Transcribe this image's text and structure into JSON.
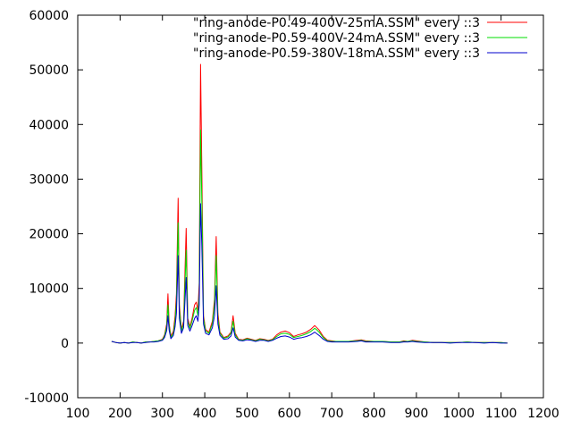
{
  "chart_data": {
    "type": "line",
    "title": "",
    "xlabel": "",
    "ylabel": "",
    "xlim": [
      100,
      1200
    ],
    "ylim": [
      -10000,
      60000
    ],
    "xticks": [
      100,
      200,
      300,
      400,
      500,
      600,
      700,
      800,
      900,
      1000,
      1100,
      1200
    ],
    "yticks": [
      -10000,
      0,
      10000,
      20000,
      30000,
      40000,
      50000,
      60000
    ],
    "grid": false,
    "legend_position": "top-right",
    "series": [
      {
        "name": "\"ring-anode-P0.49-400V-25mA.SSM\" every ::3",
        "color": "#ff0000",
        "points": [
          [
            180,
            300
          ],
          [
            190,
            100
          ],
          [
            200,
            0
          ],
          [
            210,
            100
          ],
          [
            220,
            0
          ],
          [
            230,
            200
          ],
          [
            240,
            100
          ],
          [
            250,
            0
          ],
          [
            260,
            200
          ],
          [
            270,
            200
          ],
          [
            280,
            300
          ],
          [
            290,
            400
          ],
          [
            300,
            700
          ],
          [
            305,
            1500
          ],
          [
            310,
            3500
          ],
          [
            313,
            9000
          ],
          [
            316,
            3500
          ],
          [
            320,
            1200
          ],
          [
            326,
            2200
          ],
          [
            330,
            5000
          ],
          [
            333,
            9000
          ],
          [
            337,
            26500
          ],
          [
            340,
            7000
          ],
          [
            345,
            2500
          ],
          [
            350,
            4000
          ],
          [
            356,
            21000
          ],
          [
            360,
            4500
          ],
          [
            365,
            3000
          ],
          [
            370,
            4500
          ],
          [
            376,
            7000
          ],
          [
            380,
            7500
          ],
          [
            384,
            6000
          ],
          [
            387,
            11000
          ],
          [
            390,
            51000
          ],
          [
            393,
            32000
          ],
          [
            397,
            5000
          ],
          [
            402,
            2500
          ],
          [
            410,
            2000
          ],
          [
            418,
            4000
          ],
          [
            423,
            8000
          ],
          [
            427,
            19500
          ],
          [
            431,
            5500
          ],
          [
            436,
            2000
          ],
          [
            445,
            1000
          ],
          [
            455,
            1300
          ],
          [
            462,
            2000
          ],
          [
            467,
            5000
          ],
          [
            472,
            1800
          ],
          [
            480,
            700
          ],
          [
            490,
            600
          ],
          [
            500,
            900
          ],
          [
            510,
            700
          ],
          [
            520,
            500
          ],
          [
            530,
            800
          ],
          [
            540,
            700
          ],
          [
            550,
            500
          ],
          [
            560,
            700
          ],
          [
            570,
            1500
          ],
          [
            580,
            2000
          ],
          [
            590,
            2200
          ],
          [
            600,
            1900
          ],
          [
            610,
            1200
          ],
          [
            620,
            1500
          ],
          [
            630,
            1700
          ],
          [
            640,
            2000
          ],
          [
            650,
            2500
          ],
          [
            660,
            3200
          ],
          [
            665,
            2800
          ],
          [
            670,
            2400
          ],
          [
            680,
            1200
          ],
          [
            690,
            500
          ],
          [
            700,
            400
          ],
          [
            710,
            300
          ],
          [
            720,
            300
          ],
          [
            740,
            300
          ],
          [
            760,
            500
          ],
          [
            770,
            600
          ],
          [
            780,
            400
          ],
          [
            800,
            300
          ],
          [
            820,
            300
          ],
          [
            840,
            200
          ],
          [
            860,
            200
          ],
          [
            870,
            400
          ],
          [
            880,
            300
          ],
          [
            890,
            500
          ],
          [
            900,
            400
          ],
          [
            920,
            200
          ],
          [
            940,
            100
          ],
          [
            960,
            100
          ],
          [
            980,
            100
          ],
          [
            1000,
            100
          ],
          [
            1020,
            200
          ],
          [
            1040,
            100
          ],
          [
            1060,
            100
          ],
          [
            1080,
            100
          ],
          [
            1100,
            100
          ],
          [
            1115,
            0
          ]
        ]
      },
      {
        "name": "\"ring-anode-P0.59-400V-24mA.SSM\" every ::3",
        "color": "#00dd00",
        "points": [
          [
            180,
            300
          ],
          [
            190,
            100
          ],
          [
            200,
            0
          ],
          [
            210,
            100
          ],
          [
            220,
            0
          ],
          [
            230,
            200
          ],
          [
            240,
            100
          ],
          [
            250,
            0
          ],
          [
            260,
            200
          ],
          [
            270,
            200
          ],
          [
            280,
            300
          ],
          [
            290,
            400
          ],
          [
            300,
            600
          ],
          [
            305,
            1300
          ],
          [
            310,
            3000
          ],
          [
            313,
            7000
          ],
          [
            316,
            3000
          ],
          [
            320,
            1000
          ],
          [
            326,
            1800
          ],
          [
            330,
            4000
          ],
          [
            333,
            7500
          ],
          [
            337,
            22000
          ],
          [
            340,
            6000
          ],
          [
            345,
            2200
          ],
          [
            350,
            3500
          ],
          [
            356,
            17000
          ],
          [
            360,
            4000
          ],
          [
            365,
            2700
          ],
          [
            370,
            4000
          ],
          [
            376,
            6000
          ],
          [
            380,
            6500
          ],
          [
            384,
            5000
          ],
          [
            387,
            9000
          ],
          [
            390,
            39000
          ],
          [
            393,
            26000
          ],
          [
            397,
            4500
          ],
          [
            402,
            2200
          ],
          [
            410,
            1800
          ],
          [
            418,
            3500
          ],
          [
            423,
            7000
          ],
          [
            427,
            16000
          ],
          [
            431,
            4500
          ],
          [
            436,
            1800
          ],
          [
            445,
            900
          ],
          [
            455,
            1100
          ],
          [
            462,
            1800
          ],
          [
            467,
            4000
          ],
          [
            472,
            1500
          ],
          [
            480,
            600
          ],
          [
            490,
            500
          ],
          [
            500,
            800
          ],
          [
            510,
            600
          ],
          [
            520,
            400
          ],
          [
            530,
            700
          ],
          [
            540,
            600
          ],
          [
            550,
            400
          ],
          [
            560,
            600
          ],
          [
            570,
            1200
          ],
          [
            580,
            1700
          ],
          [
            590,
            1800
          ],
          [
            600,
            1600
          ],
          [
            610,
            1000
          ],
          [
            620,
            1200
          ],
          [
            630,
            1400
          ],
          [
            640,
            1700
          ],
          [
            650,
            2100
          ],
          [
            660,
            2700
          ],
          [
            665,
            2400
          ],
          [
            670,
            2000
          ],
          [
            680,
            1000
          ],
          [
            690,
            400
          ],
          [
            700,
            300
          ],
          [
            710,
            300
          ],
          [
            720,
            300
          ],
          [
            740,
            300
          ],
          [
            760,
            400
          ],
          [
            770,
            500
          ],
          [
            780,
            300
          ],
          [
            800,
            300
          ],
          [
            820,
            300
          ],
          [
            840,
            200
          ],
          [
            860,
            200
          ],
          [
            870,
            300
          ],
          [
            880,
            300
          ],
          [
            890,
            400
          ],
          [
            900,
            300
          ],
          [
            920,
            200
          ],
          [
            940,
            100
          ],
          [
            960,
            100
          ],
          [
            980,
            100
          ],
          [
            1000,
            100
          ],
          [
            1020,
            200
          ],
          [
            1040,
            100
          ],
          [
            1060,
            100
          ],
          [
            1080,
            100
          ],
          [
            1100,
            100
          ],
          [
            1115,
            0
          ]
        ]
      },
      {
        "name": "\"ring-anode-P0.59-380V-18mA.SSM\" every ::3",
        "color": "#0000cc",
        "points": [
          [
            180,
            300
          ],
          [
            190,
            100
          ],
          [
            200,
            0
          ],
          [
            210,
            100
          ],
          [
            220,
            0
          ],
          [
            230,
            100
          ],
          [
            240,
            100
          ],
          [
            250,
            0
          ],
          [
            260,
            100
          ],
          [
            270,
            200
          ],
          [
            280,
            200
          ],
          [
            290,
            300
          ],
          [
            300,
            500
          ],
          [
            305,
            1000
          ],
          [
            310,
            2300
          ],
          [
            313,
            5000
          ],
          [
            316,
            2300
          ],
          [
            320,
            800
          ],
          [
            326,
            1400
          ],
          [
            330,
            3000
          ],
          [
            333,
            5500
          ],
          [
            337,
            16000
          ],
          [
            340,
            4500
          ],
          [
            345,
            1800
          ],
          [
            350,
            2800
          ],
          [
            356,
            12000
          ],
          [
            360,
            3200
          ],
          [
            365,
            2200
          ],
          [
            370,
            3200
          ],
          [
            376,
            4500
          ],
          [
            380,
            5000
          ],
          [
            384,
            4000
          ],
          [
            387,
            7000
          ],
          [
            390,
            25500
          ],
          [
            393,
            18000
          ],
          [
            397,
            3500
          ],
          [
            402,
            1800
          ],
          [
            410,
            1500
          ],
          [
            418,
            2800
          ],
          [
            423,
            5000
          ],
          [
            427,
            10500
          ],
          [
            431,
            3500
          ],
          [
            436,
            1400
          ],
          [
            445,
            700
          ],
          [
            455,
            800
          ],
          [
            462,
            1300
          ],
          [
            467,
            2800
          ],
          [
            472,
            1100
          ],
          [
            480,
            500
          ],
          [
            490,
            400
          ],
          [
            500,
            600
          ],
          [
            510,
            500
          ],
          [
            520,
            300
          ],
          [
            530,
            500
          ],
          [
            540,
            500
          ],
          [
            550,
            300
          ],
          [
            560,
            500
          ],
          [
            570,
            900
          ],
          [
            580,
            1200
          ],
          [
            590,
            1300
          ],
          [
            600,
            1100
          ],
          [
            610,
            700
          ],
          [
            620,
            900
          ],
          [
            630,
            1000
          ],
          [
            640,
            1200
          ],
          [
            650,
            1500
          ],
          [
            660,
            2000
          ],
          [
            665,
            1700
          ],
          [
            670,
            1400
          ],
          [
            680,
            700
          ],
          [
            690,
            300
          ],
          [
            700,
            200
          ],
          [
            710,
            200
          ],
          [
            720,
            200
          ],
          [
            740,
            200
          ],
          [
            760,
            300
          ],
          [
            770,
            400
          ],
          [
            780,
            200
          ],
          [
            800,
            200
          ],
          [
            820,
            200
          ],
          [
            840,
            100
          ],
          [
            860,
            100
          ],
          [
            870,
            200
          ],
          [
            880,
            200
          ],
          [
            890,
            300
          ],
          [
            900,
            200
          ],
          [
            920,
            100
          ],
          [
            940,
            100
          ],
          [
            960,
            100
          ],
          [
            980,
            0
          ],
          [
            1000,
            100
          ],
          [
            1020,
            100
          ],
          [
            1040,
            100
          ],
          [
            1060,
            0
          ],
          [
            1080,
            100
          ],
          [
            1100,
            0
          ],
          [
            1115,
            0
          ]
        ]
      }
    ]
  }
}
